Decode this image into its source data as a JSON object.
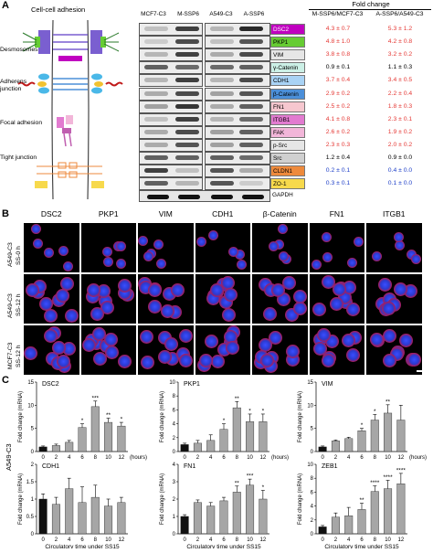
{
  "panels": {
    "a": "A",
    "b": "B",
    "c": "C"
  },
  "panelA": {
    "diagram_title": "Cell-cell adhesion",
    "diagram_labels": [
      "Desmosomes",
      "Adherens junction",
      "Focal adhesion",
      "Tight junction"
    ],
    "blot_columns": [
      "MCF7-C3",
      "M-SSP6",
      "A549-C3",
      "A-SSP6"
    ],
    "fold_change_title": "Fold change",
    "fold_change_columns": [
      "M-SSP6/MCF7-C3",
      "A-SSP6/A549-C3"
    ],
    "loading_control": "GAPDH",
    "proteins": [
      {
        "name": "DSC2",
        "color": "#c000c0",
        "text_color": "#ffffff",
        "m": "4.3 ± 0.7",
        "a": "5.3 ± 1.2",
        "value_color": "#e53935"
      },
      {
        "name": "PKP1",
        "color": "#66cc33",
        "text_color": "#000000",
        "m": "4.8 ± 1.0",
        "a": "4.2 ± 0.8",
        "value_color": "#e53935"
      },
      {
        "name": "VIM",
        "color": "#e6e6e6",
        "text_color": "#000000",
        "m": "3.8 ± 0.8",
        "a": "3.2 ± 0.2",
        "value_color": "#e53935"
      },
      {
        "name": "γ-Catenin",
        "color": "#ccf0e6",
        "text_color": "#000000",
        "m": "0.9 ± 0.1",
        "a": "1.1 ± 0.3",
        "value_color": "#000000"
      },
      {
        "name": "CDH1",
        "color": "#a9d3f5",
        "text_color": "#000000",
        "m": "3.7 ± 0.4",
        "a": "3.4 ± 0.5",
        "value_color": "#e53935"
      },
      {
        "name": "β-Catenin",
        "color": "#4b8fd9",
        "text_color": "#000000",
        "m": "2.9 ± 0.2",
        "a": "2.2 ± 0.4",
        "value_color": "#e53935"
      },
      {
        "name": "FN1",
        "color": "#f6c7cf",
        "text_color": "#000000",
        "m": "2.5 ± 0.2",
        "a": "1.8 ± 0.3",
        "value_color": "#e53935"
      },
      {
        "name": "ITGB1",
        "color": "#e27bd0",
        "text_color": "#000000",
        "m": "4.1 ± 0.8",
        "a": "2.3 ± 0.1",
        "value_color": "#e53935"
      },
      {
        "name": "FAK",
        "color": "#f2b6d9",
        "text_color": "#000000",
        "m": "2.6 ± 0.2",
        "a": "1.9 ± 0.2",
        "value_color": "#e53935"
      },
      {
        "name": "p-Src",
        "color": "#e6e6e6",
        "text_color": "#000000",
        "m": "2.3 ± 0.3",
        "a": "2.0 ± 0.2",
        "value_color": "#e53935"
      },
      {
        "name": "Src",
        "color": "#d0d0d0",
        "text_color": "#000000",
        "m": "1.2 ± 0.4",
        "a": "0.9 ± 0.0",
        "value_color": "#000000"
      },
      {
        "name": "CLDN1",
        "color": "#ee8a3c",
        "text_color": "#000000",
        "m": "0.2 ± 0.1",
        "a": "0.4 ± 0.0",
        "value_color": "#1e3fc8"
      },
      {
        "name": "ZO-1",
        "color": "#f7d94c",
        "text_color": "#000000",
        "m": "0.3 ± 0.1",
        "a": "0.1 ± 0.0",
        "value_color": "#1e3fc8"
      }
    ]
  },
  "panelB": {
    "columns": [
      "DSC2",
      "PKP1",
      "VIM",
      "CDH1",
      "β-Catenin",
      "FN1",
      "ITGB1"
    ],
    "rows": [
      {
        "cell": "A549-C3",
        "label": "SS-0 h"
      },
      {
        "cell": "A549-C3",
        "label": "SS-12 h"
      },
      {
        "cell": "MCF7-C3",
        "label": "SS-12 h"
      }
    ]
  },
  "panelC": {
    "row_label": "A549-C3",
    "ylabel": "Fold change (mRNA)",
    "xlabel": "Circulatory time under SS15",
    "xunit": "(hours)"
  },
  "chart_data": [
    {
      "type": "bar",
      "title": "DSC2",
      "categories": [
        "0",
        "2",
        "4",
        "6",
        "8",
        "10",
        "12"
      ],
      "values": [
        1.0,
        1.3,
        2.0,
        5.2,
        9.7,
        6.3,
        5.5
      ],
      "errors": [
        0.2,
        0.3,
        0.4,
        0.8,
        1.2,
        0.9,
        0.8
      ],
      "sig": [
        "",
        "",
        "",
        "*",
        "***",
        "**",
        "*"
      ],
      "ylim": [
        0,
        15
      ],
      "yticks": [
        0,
        5,
        10,
        15
      ]
    },
    {
      "type": "bar",
      "title": "PKP1",
      "categories": [
        "0",
        "2",
        "4",
        "6",
        "8",
        "10",
        "12"
      ],
      "values": [
        1.0,
        1.2,
        1.6,
        3.2,
        6.3,
        4.3,
        4.3
      ],
      "errors": [
        0.2,
        0.4,
        0.8,
        0.8,
        0.9,
        1.1,
        1.1
      ],
      "sig": [
        "",
        "",
        "",
        "*",
        "**",
        "*",
        "*"
      ],
      "ylim": [
        0,
        10
      ],
      "yticks": [
        0,
        2,
        4,
        6,
        8,
        10
      ]
    },
    {
      "type": "bar",
      "title": "VIM",
      "categories": [
        "0",
        "2",
        "4",
        "6",
        "8",
        "10",
        "12"
      ],
      "values": [
        1.0,
        2.3,
        2.8,
        4.5,
        6.8,
        8.3,
        6.8
      ],
      "errors": [
        0.2,
        0.2,
        0.3,
        0.5,
        1.2,
        1.8,
        3.2
      ],
      "sig": [
        "",
        "",
        "",
        "*",
        "*",
        "**",
        ""
      ],
      "ylim": [
        0,
        15
      ],
      "yticks": [
        0,
        5,
        10,
        15
      ]
    },
    {
      "type": "bar",
      "title": "CDH1",
      "categories": [
        "0",
        "2",
        "4",
        "6",
        "8",
        "10",
        "12"
      ],
      "values": [
        1.0,
        0.85,
        1.3,
        0.9,
        1.05,
        0.8,
        0.9
      ],
      "errors": [
        0.15,
        0.2,
        0.3,
        0.45,
        0.35,
        0.2,
        0.15
      ],
      "sig": [
        "",
        "",
        "",
        "",
        "",
        "",
        ""
      ],
      "ylim": [
        0,
        2.0
      ],
      "yticks": [
        0,
        0.5,
        1.0,
        1.5,
        2.0
      ]
    },
    {
      "type": "bar",
      "title": "FN1",
      "categories": [
        "0",
        "2",
        "4",
        "6",
        "8",
        "10",
        "12"
      ],
      "values": [
        1.0,
        1.8,
        1.6,
        1.9,
        2.4,
        2.8,
        2.0
      ],
      "errors": [
        0.1,
        0.15,
        0.2,
        0.2,
        0.35,
        0.35,
        0.5
      ],
      "sig": [
        "",
        "",
        "",
        "",
        "**",
        "***",
        "*"
      ],
      "ylim": [
        0,
        4
      ],
      "yticks": [
        0,
        1,
        2,
        3,
        4
      ]
    },
    {
      "type": "bar",
      "title": "ZEB1",
      "categories": [
        "0",
        "2",
        "4",
        "6",
        "8",
        "10",
        "12"
      ],
      "values": [
        1.0,
        2.4,
        2.6,
        3.5,
        6.1,
        6.5,
        7.2
      ],
      "errors": [
        0.2,
        0.6,
        1.2,
        0.9,
        0.8,
        1.2,
        1.5
      ],
      "sig": [
        "",
        "",
        "",
        "**",
        "****",
        "****",
        "****"
      ],
      "ylim": [
        0,
        10
      ],
      "yticks": [
        0,
        2,
        4,
        6,
        8,
        10
      ]
    }
  ]
}
